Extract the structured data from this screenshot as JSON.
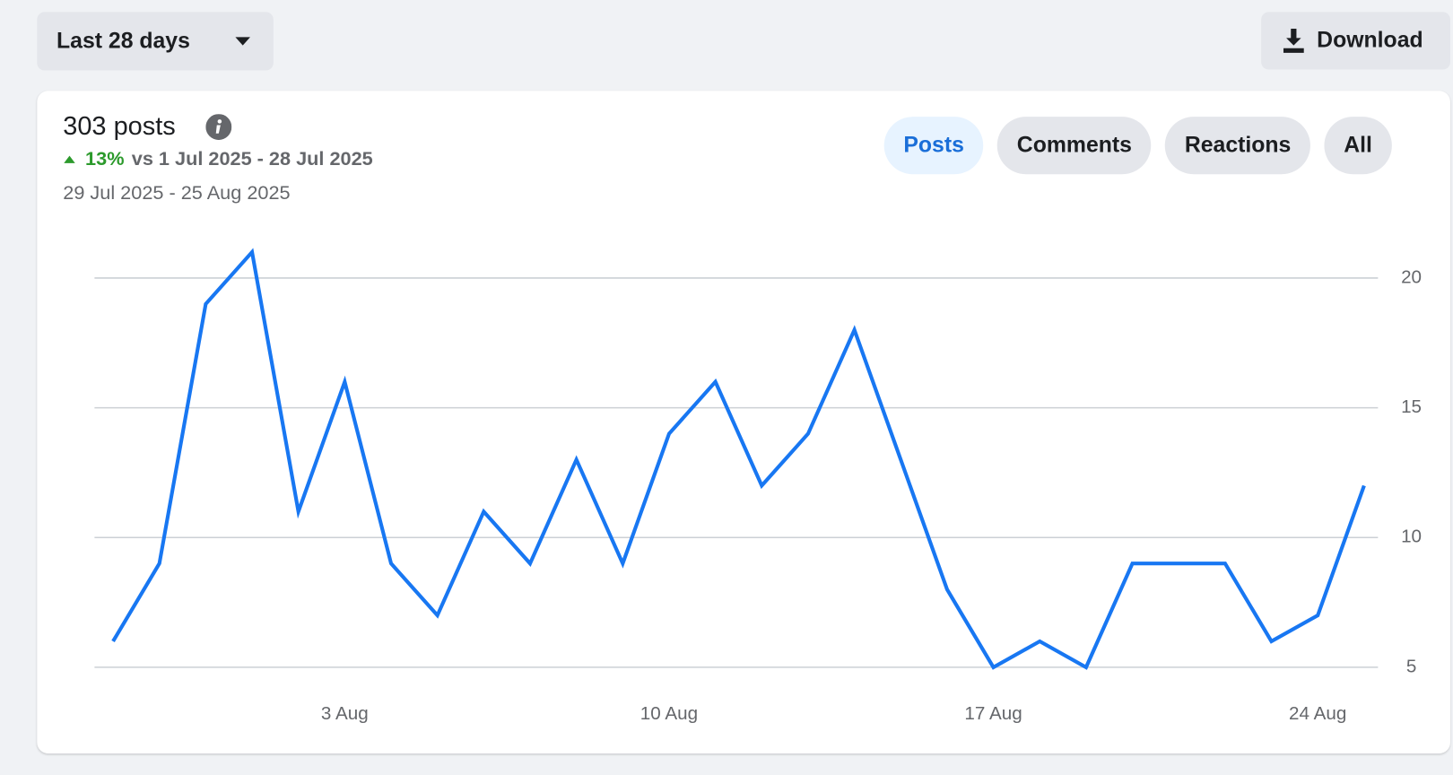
{
  "toolbar": {
    "filter": "Last 28 days",
    "download": "Download"
  },
  "summary": {
    "total": "303 posts",
    "change": "13%",
    "comparison": "vs 1 Jul 2025 - 28 Jul 2025",
    "range": "29 Jul 2025 - 25 Aug 2025"
  },
  "tabs": [
    "Posts",
    "Comments",
    "Reactions",
    "All"
  ],
  "active_tab": 0,
  "chart_data": {
    "type": "line",
    "categories": [
      null,
      null,
      null,
      null,
      null,
      "3 Aug",
      null,
      null,
      null,
      null,
      null,
      null,
      "10 Aug",
      null,
      null,
      null,
      null,
      null,
      null,
      "17 Aug",
      null,
      null,
      null,
      null,
      null,
      null,
      "24 Aug",
      null
    ],
    "values": [
      6,
      9,
      19,
      21,
      11,
      16,
      9,
      7,
      11,
      9,
      13,
      9,
      14,
      16,
      12,
      14,
      18,
      13,
      8,
      5,
      6,
      5,
      9,
      9,
      9,
      6,
      7,
      12
    ],
    "color": "#1877f2",
    "ylim": [
      5,
      22
    ],
    "yticks": [
      5,
      10,
      15,
      20
    ],
    "grid": true,
    "y_axis_side": "right"
  }
}
